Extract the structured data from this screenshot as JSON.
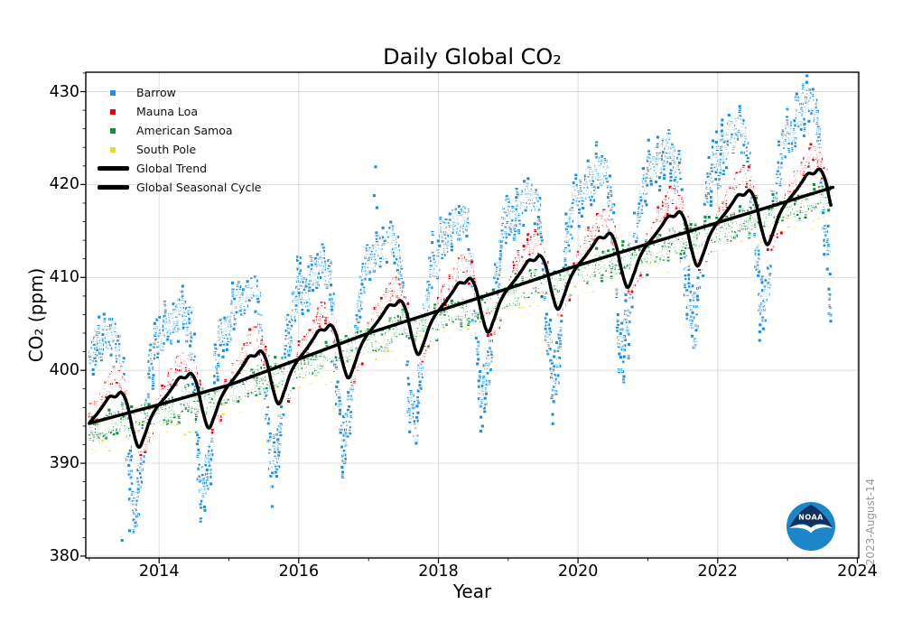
{
  "figure": {
    "watermark": "2023-August-14",
    "logo_text": "NOAA",
    "background": "#ffffff",
    "frame_color": "#000000"
  },
  "chart_data": {
    "type": "scatter",
    "title": "Daily Global CO₂",
    "xlabel": "Year",
    "ylabel": "CO₂ (ppm)",
    "xlim": [
      2012.95,
      2024.02
    ],
    "ylim": [
      379.8,
      432.09
    ],
    "xticks": [
      2014,
      2016,
      2018,
      2020,
      2022,
      2024
    ],
    "yticks": [
      380,
      390,
      400,
      410,
      420,
      430
    ],
    "x_minor_step": 1,
    "y_minor_step": 2,
    "grid": true,
    "grid_color": "#d9d9d9",
    "legend_position": "upper-left",
    "time_start": 2013.0,
    "time_end": 2023.62,
    "samples_per_year": 365,
    "marker": "square",
    "marker_size_px": 3.8,
    "marker_edge_color": "#ffffff",
    "trend": {
      "name": "Global Trend",
      "color": "#000000",
      "line_width": 3.5,
      "years": [
        2013,
        2014,
        2015,
        2016,
        2017,
        2018,
        2019,
        2020,
        2021,
        2022,
        2023,
        2023.65
      ],
      "values": [
        394.3,
        396.3,
        398.4,
        401.2,
        404.0,
        406.4,
        408.8,
        411.3,
        413.6,
        415.9,
        418.2,
        419.7
      ]
    },
    "seasonal_cycle": {
      "name": "Global Seasonal Cycle",
      "color": "#000000",
      "line_width": 3.5,
      "monthly_offsets_ppm": [
        0.3,
        0.9,
        1.6,
        2.3,
        2.1,
        2.4,
        1.0,
        -2.0,
        -4.0,
        -2.9,
        -1.3,
        -0.3
      ]
    },
    "stations": [
      {
        "name": "Barrow",
        "color": "#1e8ee0",
        "monthly_offsets_ppm": [
          7.5,
          8.0,
          8.5,
          9.2,
          9.0,
          5.5,
          -3.5,
          -10.5,
          -8.5,
          -1.5,
          4.0,
          6.5
        ],
        "monthly_noise_sd_ppm": [
          1.3,
          1.3,
          1.2,
          1.2,
          1.1,
          1.6,
          2.2,
          2.3,
          2.1,
          1.9,
          1.6,
          1.4
        ],
        "outliers": [
          [
            2013.47,
            381.7
          ],
          [
            2017.08,
            418.8
          ],
          [
            2017.1,
            421.9
          ],
          [
            2017.12,
            417.5
          ]
        ]
      },
      {
        "name": "Mauna Loa",
        "color": "#e8000b",
        "monthly_offsets_ppm": [
          1.0,
          1.8,
          2.7,
          3.8,
          4.3,
          3.4,
          1.2,
          -1.6,
          -3.4,
          -3.7,
          -2.3,
          -0.5
        ],
        "monthly_noise_sd_ppm": [
          0.55,
          0.55,
          0.55,
          0.55,
          0.55,
          0.55,
          0.55,
          0.55,
          0.55,
          0.55,
          0.55,
          0.55
        ],
        "outliers": []
      },
      {
        "name": "American Samoa",
        "color": "#128e3c",
        "monthly_offsets_ppm": [
          -1.1,
          -1.3,
          -1.1,
          -0.7,
          -0.5,
          -0.6,
          -0.8,
          -1.0,
          -1.2,
          -1.2,
          -1.2,
          -1.2
        ],
        "monthly_noise_sd_ppm": [
          0.75,
          0.75,
          0.75,
          0.75,
          0.75,
          0.75,
          0.75,
          0.75,
          0.75,
          0.75,
          0.75,
          0.75
        ],
        "outliers": []
      },
      {
        "name": "South Pole",
        "color": "#e3de2e",
        "monthly_offsets_ppm": [
          -2.6,
          -2.8,
          -3.0,
          -3.2,
          -3.4,
          -3.4,
          -3.3,
          -3.1,
          -2.8,
          -2.5,
          -2.4,
          -2.5
        ],
        "monthly_noise_sd_ppm": [
          0.18,
          0.18,
          0.18,
          0.18,
          0.18,
          0.18,
          0.18,
          0.18,
          0.18,
          0.18,
          0.18,
          0.18
        ],
        "outliers": []
      }
    ],
    "legend": {
      "items": [
        {
          "label": "Barrow",
          "marker": "square",
          "color": "#1e8ee0"
        },
        {
          "label": "Mauna Loa",
          "marker": "square",
          "color": "#e8000b"
        },
        {
          "label": "American Samoa",
          "marker": "square",
          "color": "#128e3c"
        },
        {
          "label": "South Pole",
          "marker": "square",
          "color": "#e3de2e"
        },
        {
          "label": "Global Trend",
          "marker": "line",
          "color": "#000000"
        },
        {
          "label": "Global Seasonal Cycle",
          "marker": "line",
          "color": "#000000"
        }
      ]
    }
  }
}
